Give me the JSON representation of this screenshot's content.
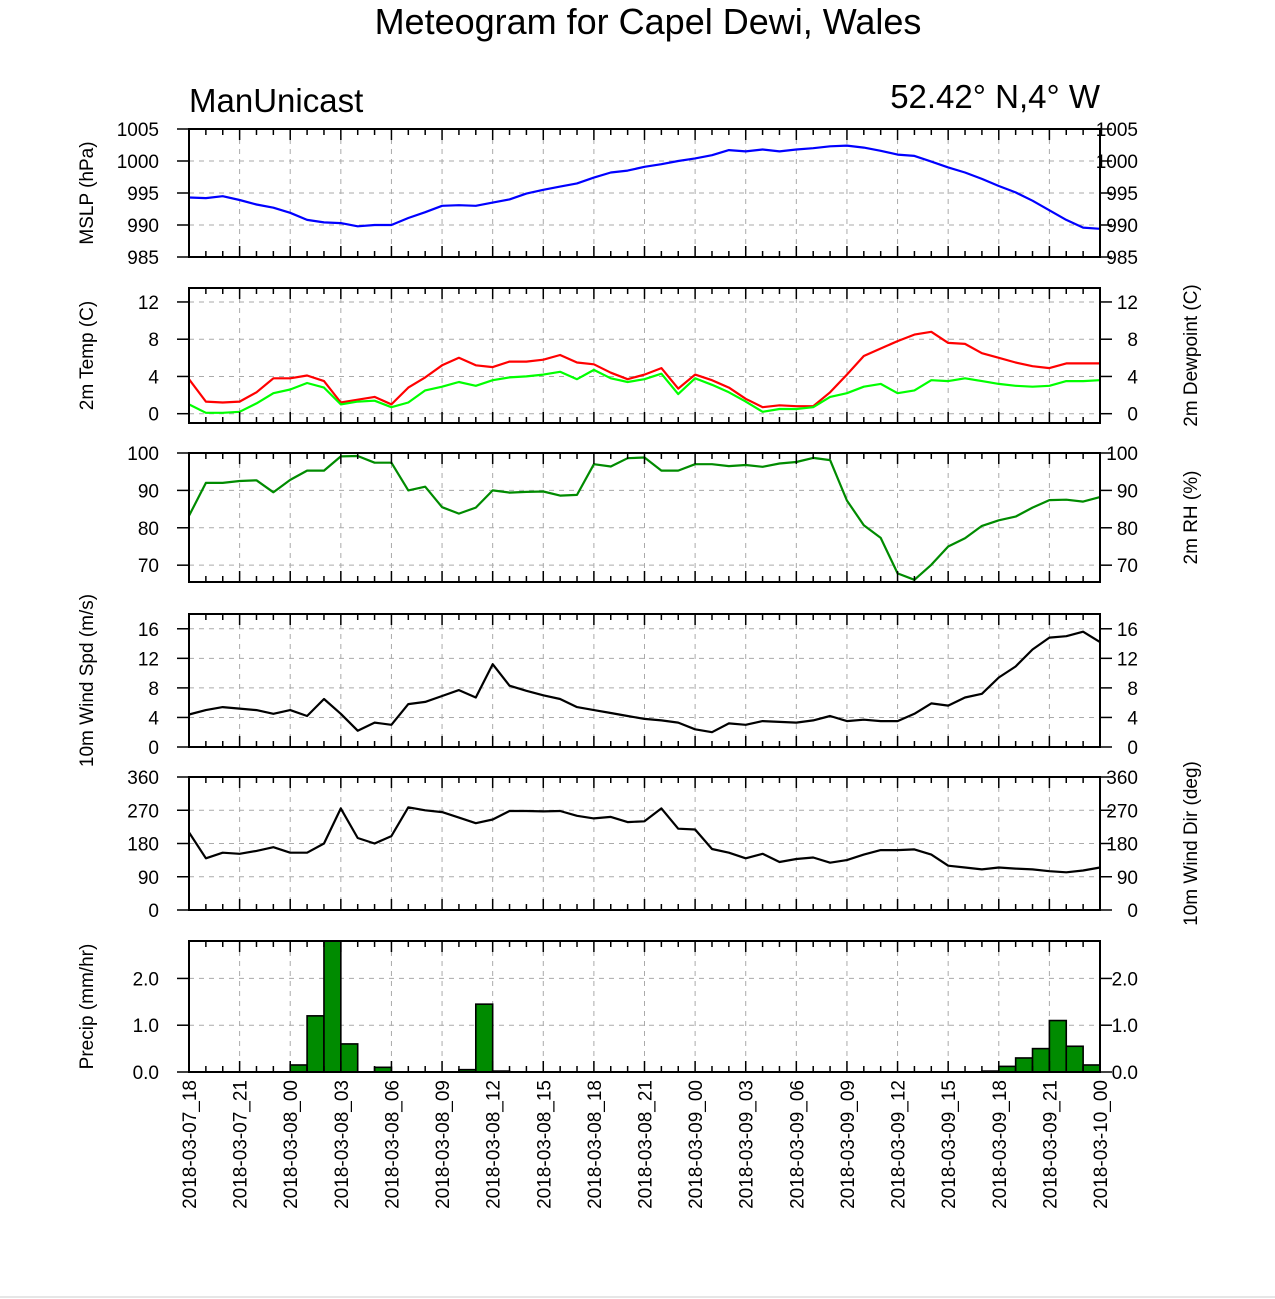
{
  "title": "Meteogram for Capel Dewi, Wales",
  "left_subtitle": "ManUnicast",
  "right_subtitle": "52.42° N,4° W",
  "colors": {
    "mslp": "#0000ff",
    "temp": "#ff0000",
    "dewpoint": "#00ff00",
    "rh": "#008b00",
    "wind": "#000000",
    "precip_fill": "#008b00",
    "grid": "#aaaaaa"
  },
  "chart_data": {
    "type": "line",
    "x_range_hours": [
      0,
      54
    ],
    "x_tick_labels": [
      "2018-03-07_18",
      "2018-03-07_21",
      "2018-03-08_00",
      "2018-03-08_03",
      "2018-03-08_06",
      "2018-03-08_09",
      "2018-03-08_12",
      "2018-03-08_15",
      "2018-03-08_18",
      "2018-03-08_21",
      "2018-03-09_00",
      "2018-03-09_03",
      "2018-03-09_06",
      "2018-03-09_09",
      "2018-03-09_12",
      "2018-03-09_15",
      "2018-03-09_18",
      "2018-03-09_21",
      "2018-03-10_00"
    ],
    "grid": true,
    "panels": [
      {
        "id": "mslp",
        "ylabel_left": "MSLP (hPa)",
        "ylabel_right": "",
        "right_ticks": true,
        "ylim": [
          985,
          1005
        ],
        "yticks": [
          985,
          990,
          995,
          1000,
          1005
        ],
        "series": [
          {
            "key": "mslp",
            "type": "line",
            "values": [
              994.3,
              994.2,
              994.5,
              993.9,
              993.2,
              992.7,
              991.9,
              990.8,
              990.4,
              990.3,
              989.8,
              990.0,
              990.0,
              991.1,
              992.0,
              993.0,
              993.1,
              993.0,
              993.5,
              994.0,
              994.9,
              995.5,
              996.0,
              996.5,
              997.4,
              998.2,
              998.5,
              999.1,
              999.5,
              1000.0,
              1000.4,
              1000.9,
              1001.7,
              1001.5,
              1001.8,
              1001.5,
              1001.8,
              1002.0,
              1002.3,
              1002.4,
              1002.1,
              1001.6,
              1001.0,
              1000.8,
              999.9,
              999.0,
              998.2,
              997.2,
              996.1,
              995.1,
              993.8,
              992.3,
              990.8,
              989.6,
              989.4
            ]
          }
        ]
      },
      {
        "id": "temp",
        "ylabel_left": "2m Temp (C)",
        "ylabel_right": "2m Dewpoint (C)",
        "right_ticks": true,
        "ylim": [
          -1,
          13.5
        ],
        "yticks": [
          0,
          4,
          8,
          12
        ],
        "series": [
          {
            "key": "temp",
            "type": "line",
            "values": [
              3.7,
              1.3,
              1.2,
              1.3,
              2.3,
              3.8,
              3.8,
              4.1,
              3.5,
              1.2,
              1.5,
              1.8,
              1.0,
              2.8,
              3.9,
              5.2,
              6.0,
              5.2,
              5.0,
              5.6,
              5.6,
              5.8,
              6.3,
              5.5,
              5.3,
              4.4,
              3.7,
              4.2,
              4.9,
              2.7,
              4.2,
              3.6,
              2.8,
              1.6,
              0.7,
              0.9,
              0.8,
              0.8,
              2.3,
              4.2,
              6.2,
              7.0,
              7.8,
              8.5,
              8.8,
              7.6,
              7.5,
              6.5,
              6.0,
              5.5,
              5.1,
              4.9,
              5.4,
              5.4,
              5.4
            ]
          },
          {
            "key": "dewpoint",
            "type": "line",
            "values": [
              1.0,
              0.1,
              0.1,
              0.2,
              1.1,
              2.2,
              2.6,
              3.3,
              2.8,
              1.0,
              1.3,
              1.4,
              0.7,
              1.2,
              2.5,
              2.9,
              3.4,
              3.0,
              3.6,
              3.9,
              4.0,
              4.2,
              4.5,
              3.7,
              4.7,
              3.8,
              3.4,
              3.7,
              4.3,
              2.1,
              3.8,
              3.1,
              2.3,
              1.3,
              0.2,
              0.5,
              0.5,
              0.7,
              1.8,
              2.2,
              2.9,
              3.2,
              2.2,
              2.5,
              3.6,
              3.5,
              3.8,
              3.5,
              3.2,
              3.0,
              2.9,
              3.0,
              3.5,
              3.5,
              3.6
            ]
          }
        ]
      },
      {
        "id": "rh",
        "ylabel_left": "",
        "ylabel_right": "2m RH (%)",
        "right_ticks": true,
        "ylim": [
          65.5,
          100
        ],
        "yticks": [
          70,
          80,
          90,
          100
        ],
        "series": [
          {
            "key": "rh",
            "type": "line",
            "values": [
              83.2,
              92.0,
              92.0,
              92.5,
              92.7,
              89.5,
              92.8,
              95.3,
              95.3,
              99.1,
              99.2,
              97.4,
              97.4,
              90.0,
              91.0,
              85.5,
              83.8,
              85.4,
              90.0,
              89.4,
              89.6,
              89.7,
              88.6,
              88.8,
              97.0,
              96.4,
              98.6,
              98.8,
              95.3,
              95.3,
              97.0,
              97.0,
              96.5,
              96.8,
              96.3,
              97.2,
              97.6,
              98.7,
              98.1,
              87.3,
              80.7,
              77.3,
              67.8,
              66.1,
              70.1,
              75.0,
              77.2,
              80.5,
              82.0,
              83.0,
              85.4,
              87.4,
              87.5,
              87.0,
              88.2
            ]
          }
        ]
      },
      {
        "id": "wspd",
        "ylabel_left": "10m Wind Spd (m/s)",
        "ylabel_right": "",
        "right_ticks": true,
        "ylim": [
          0,
          18
        ],
        "yticks": [
          0,
          4,
          8,
          12,
          16
        ],
        "series": [
          {
            "key": "wind",
            "type": "line",
            "values": [
              4.4,
              5.0,
              5.4,
              5.2,
              5.0,
              4.5,
              5.0,
              4.2,
              6.5,
              4.5,
              2.2,
              3.3,
              3.0,
              5.8,
              6.1,
              6.9,
              7.7,
              6.7,
              11.2,
              8.3,
              7.6,
              7.0,
              6.5,
              5.4,
              5.0,
              4.6,
              4.2,
              3.8,
              3.6,
              3.3,
              2.4,
              2.0,
              3.2,
              3.0,
              3.5,
              3.4,
              3.3,
              3.6,
              4.2,
              3.5,
              3.7,
              3.5,
              3.5,
              4.5,
              5.9,
              5.6,
              6.7,
              7.2,
              9.4,
              10.9,
              13.2,
              14.8,
              15.0,
              15.6,
              14.2
            ]
          }
        ]
      },
      {
        "id": "wdir",
        "ylabel_left": "",
        "ylabel_right": "10m Wind Dir (deg)",
        "right_ticks": true,
        "ylim": [
          0,
          360
        ],
        "yticks": [
          0,
          90,
          180,
          270,
          360
        ],
        "series": [
          {
            "key": "wind",
            "type": "line",
            "values": [
              210,
              140,
              155,
              152,
              160,
              170,
              155,
              155,
              180,
              275,
              195,
              180,
              200,
              278,
              270,
              265,
              250,
              235,
              245,
              268,
              268,
              267,
              268,
              255,
              248,
              252,
              238,
              240,
              275,
              220,
              218,
              165,
              155,
              140,
              152,
              130,
              138,
              142,
              128,
              135,
              150,
              162,
              162,
              164,
              150,
              120,
              115,
              110,
              115,
              112,
              110,
              105,
              102,
              107,
              115
            ]
          }
        ]
      },
      {
        "id": "precip",
        "ylabel_left": "Precip (mm/hr)",
        "ylabel_right": "",
        "right_ticks": true,
        "ylim": [
          0,
          2.8
        ],
        "yticks": [
          0.0,
          1.0,
          2.0
        ],
        "ytick_labels": [
          "0.0",
          "1.0",
          "2.0"
        ],
        "series": [
          {
            "key": "precip_fill",
            "type": "bar",
            "values": [
              0,
              0,
              0,
              0,
              0,
              0,
              0.15,
              1.2,
              2.8,
              0.6,
              0,
              0.1,
              0,
              0,
              0,
              0,
              0.05,
              1.45,
              0.02,
              0,
              0,
              0,
              0,
              0,
              0,
              0,
              0,
              0,
              0,
              0,
              0,
              0,
              0,
              0,
              0,
              0,
              0,
              0,
              0,
              0,
              0,
              0,
              0,
              0,
              0,
              0,
              0,
              0.02,
              0.12,
              0.3,
              0.5,
              1.1,
              0.55,
              0.15
            ]
          }
        ]
      }
    ]
  }
}
